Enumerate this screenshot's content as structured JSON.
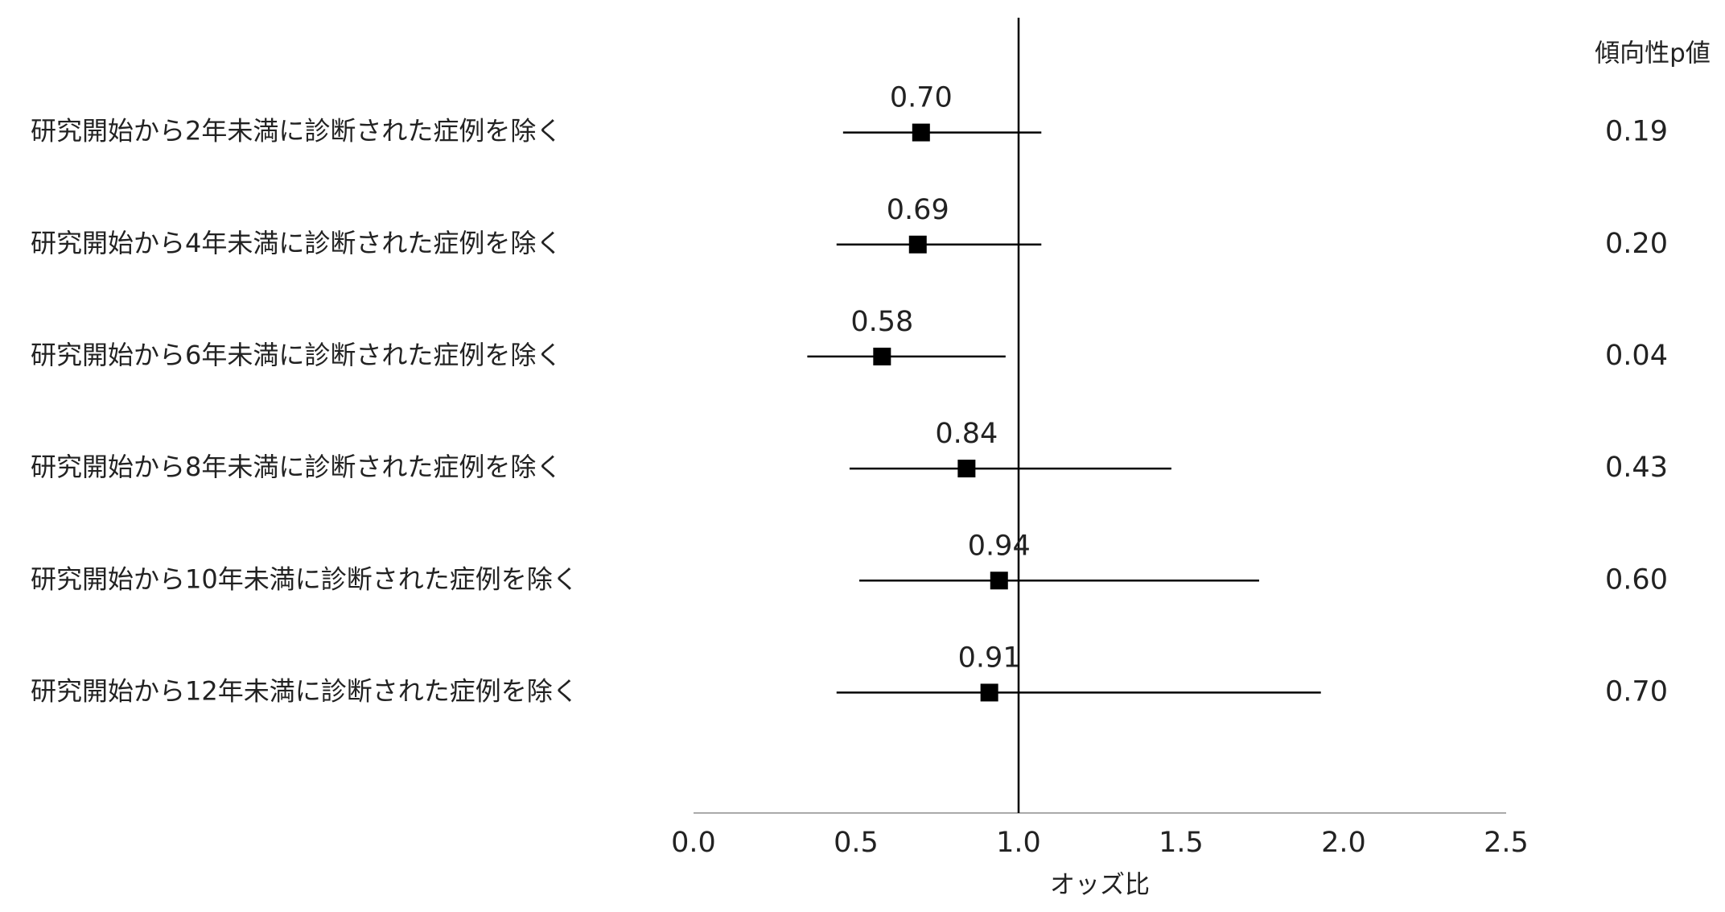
{
  "chart_data": {
    "type": "forest",
    "categories": [
      "研究開始から2年未満に診断された症例を除く",
      "研究開始から4年未満に診断された症例を除く",
      "研究開始から6年未満に診断された症例を除く",
      "研究開始から8年未満に診断された症例を除く",
      "研究開始から10年未満に診断された症例を除く",
      "研究開始から12年未満に診断された症例を除く"
    ],
    "values": [
      0.7,
      0.69,
      0.58,
      0.84,
      0.94,
      0.91
    ],
    "value_labels": [
      "0.70",
      "0.69",
      "0.58",
      "0.84",
      "0.94",
      "0.91"
    ],
    "lower": [
      0.46,
      0.44,
      0.35,
      0.48,
      0.51,
      0.44
    ],
    "upper": [
      1.07,
      1.07,
      0.96,
      1.47,
      1.74,
      1.93
    ],
    "color": "#000000",
    "reference_line": 1,
    "xlim": [
      0,
      2.5
    ],
    "xticks": [
      {
        "value": 0,
        "label": "0.0"
      },
      {
        "value": 0.5,
        "label": "0.5"
      },
      {
        "value": 1,
        "label": "1.0"
      },
      {
        "value": 1.5,
        "label": "1.5"
      },
      {
        "value": 2,
        "label": "2.0"
      },
      {
        "value": 2.5,
        "label": "2.5"
      }
    ],
    "xlabel": "オッズ比",
    "p_value_header": "傾向性p値",
    "p_values": [
      {
        "value": 0.19,
        "label": "0.19"
      },
      {
        "value": 0.2,
        "label": "0.20"
      },
      {
        "value": 0.04,
        "label": "0.04"
      },
      {
        "value": 0.43,
        "label": "0.43"
      },
      {
        "value": 0.6,
        "label": "0.60"
      },
      {
        "value": 0.7,
        "label": "0.70"
      }
    ]
  }
}
